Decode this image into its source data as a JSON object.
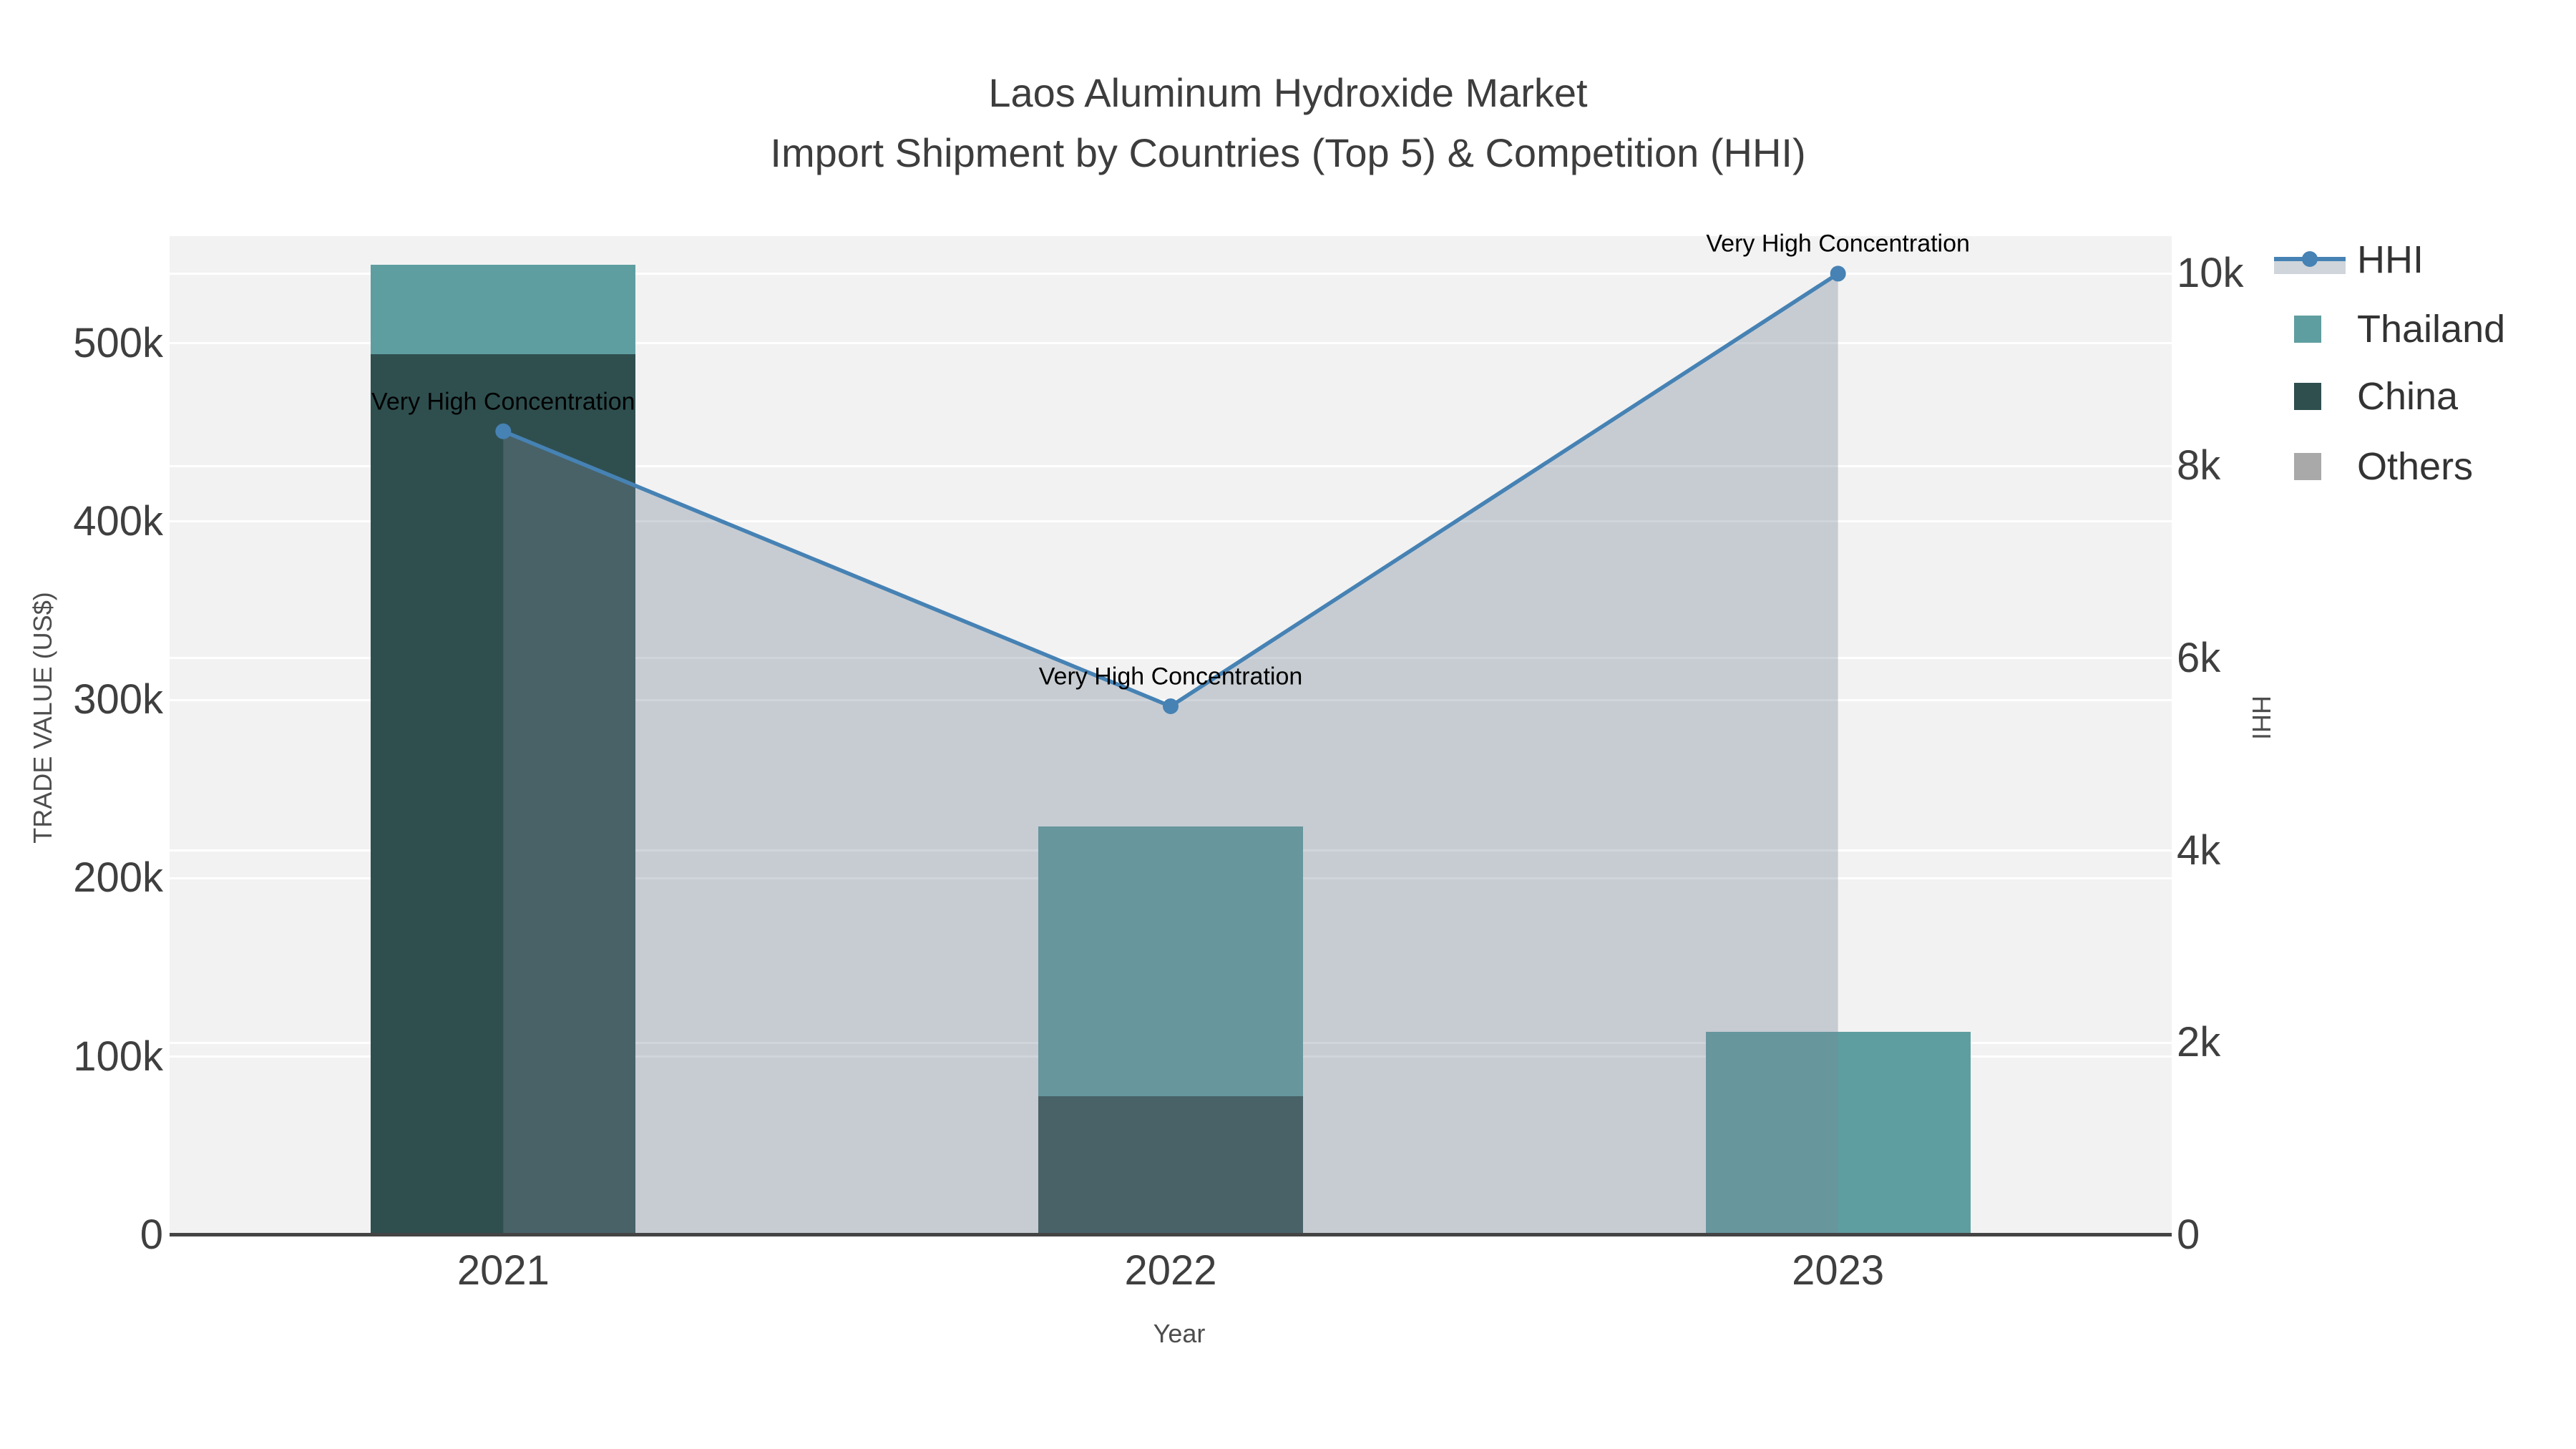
{
  "title": {
    "line1": "Laos Aluminum Hydroxide Market",
    "line2": "Import Shipment by Countries (Top 5) & Competition (HHI)"
  },
  "axes": {
    "left": {
      "title": "TRADE VALUE (US$)",
      "ticks": [
        {
          "value": 0,
          "label": "0"
        },
        {
          "value": 100000,
          "label": "100k"
        },
        {
          "value": 200000,
          "label": "200k"
        },
        {
          "value": 300000,
          "label": "300k"
        },
        {
          "value": 400000,
          "label": "400k"
        },
        {
          "value": 500000,
          "label": "500k"
        }
      ]
    },
    "right": {
      "title": "HHI",
      "ticks": [
        {
          "value": 0,
          "label": "0"
        },
        {
          "value": 2000,
          "label": "2k"
        },
        {
          "value": 4000,
          "label": "4k"
        },
        {
          "value": 6000,
          "label": "6k"
        },
        {
          "value": 8000,
          "label": "8k"
        },
        {
          "value": 10000,
          "label": "10k"
        }
      ]
    },
    "x": {
      "title": "Year",
      "ticks": [
        "2021",
        "2022",
        "2023"
      ]
    }
  },
  "legend": {
    "items": [
      {
        "label": "HHI",
        "type": "line",
        "color": "#4682B4"
      },
      {
        "label": "Thailand",
        "type": "square",
        "color": "#5F9EA0"
      },
      {
        "label": "China",
        "type": "square",
        "color": "#2F4F4F"
      },
      {
        "label": "Others",
        "type": "square",
        "color": "#A9A9A9"
      }
    ]
  },
  "colors": {
    "plot_background": "#f2f2f2",
    "grid": "#ffffff",
    "axis_line": "#444444",
    "tick_text": "#3f3f3f",
    "hhi_line": "#4682B4",
    "hhi_area_fill": "rgba(119,136,153,0.35)",
    "thailand": "#5F9EA0",
    "china": "#2F4F4F",
    "others": "#A9A9A9",
    "annotation_text": "#000000"
  },
  "chart_data": {
    "type": "bar",
    "subtype": "stacked-bars-with-line",
    "categories": [
      "2021",
      "2022",
      "2023"
    ],
    "series": [
      {
        "name": "Thailand",
        "type": "bar",
        "axis": "left",
        "color": "#5F9EA0",
        "values": [
          50000,
          151000,
          114000
        ]
      },
      {
        "name": "China",
        "type": "bar",
        "axis": "left",
        "color": "#2F4F4F",
        "values": [
          494000,
          78000,
          0
        ]
      },
      {
        "name": "Others",
        "type": "bar",
        "axis": "left",
        "color": "#A9A9A9",
        "values": [
          0,
          0,
          0
        ]
      },
      {
        "name": "HHI",
        "type": "line",
        "axis": "right",
        "color": "#4682B4",
        "fill": "rgba(119,136,153,0.35)",
        "values": [
          8360,
          5500,
          10000
        ]
      }
    ],
    "stack_order": [
      "Others",
      "China",
      "Thailand"
    ],
    "annotations": [
      {
        "text": "Very High Concentration",
        "category": "2021",
        "y": 8360
      },
      {
        "text": "Very High Concentration",
        "category": "2022",
        "y": 5500
      },
      {
        "text": "Very High Concentration",
        "category": "2023",
        "y": 10000
      }
    ],
    "title": "Laos Aluminum Hydroxide Market — Import Shipment by Countries (Top 5) & Competition (HHI)",
    "xlabel": "Year",
    "ylabel_left": "TRADE VALUE (US$)",
    "ylabel_right": "HHI",
    "ylim_left": [
      0,
      560000
    ],
    "ylim_right": [
      0,
      10390
    ],
    "grid": true,
    "legend_position": "right-top-outside"
  }
}
